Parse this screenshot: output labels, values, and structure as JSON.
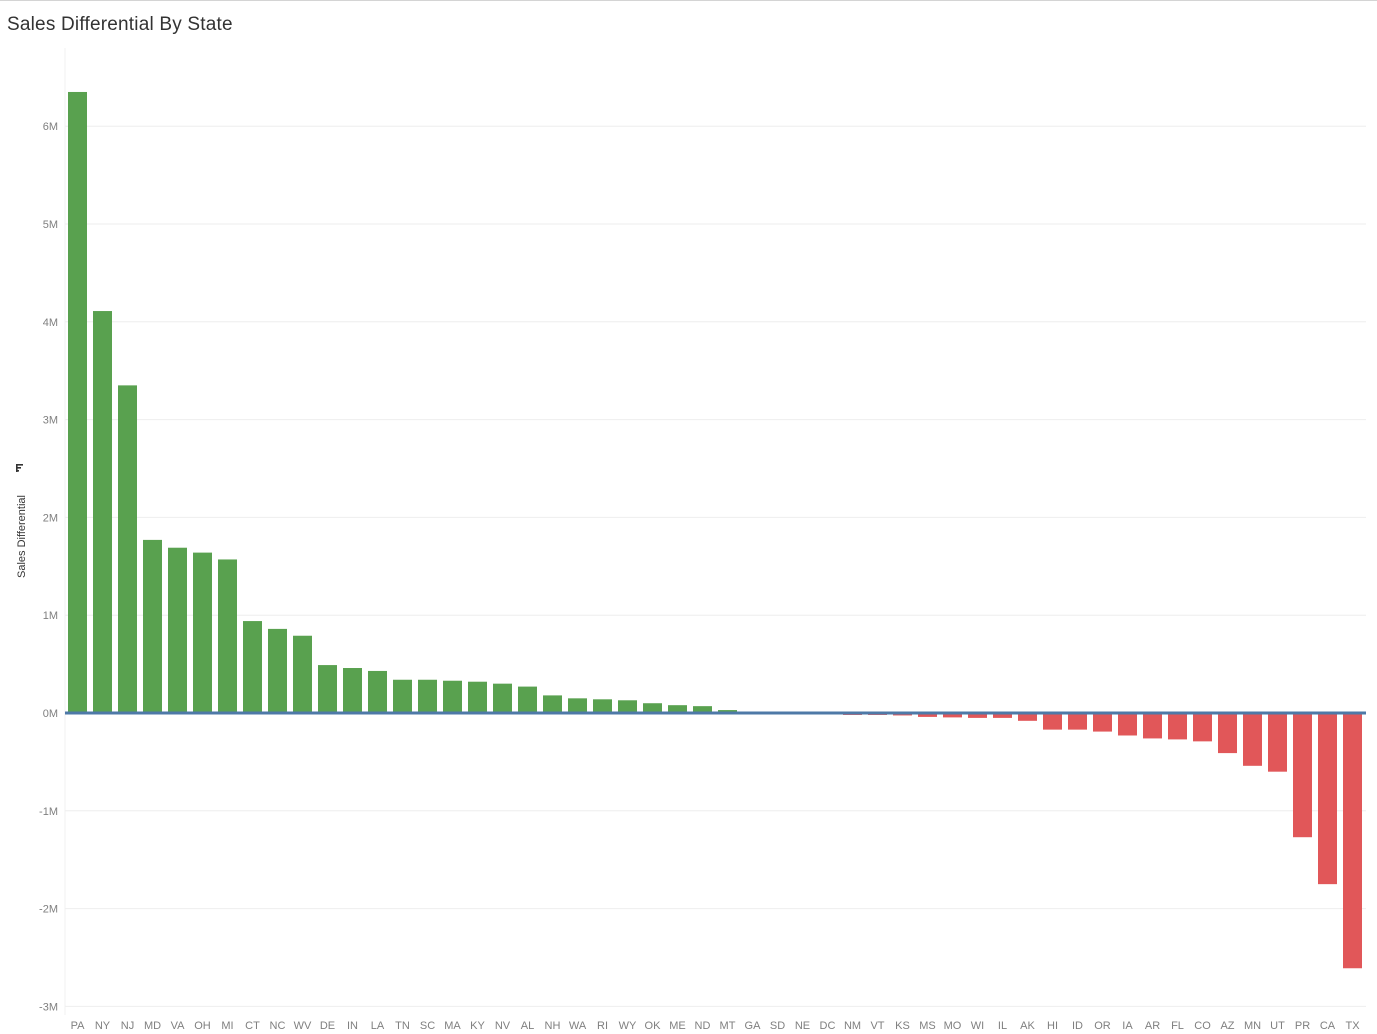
{
  "title": "Sales Differential By State",
  "chart_data": {
    "type": "bar",
    "title": "Sales Differential By State",
    "xlabel": "",
    "ylabel": "Sales Differential",
    "ylim": [
      -3000000,
      6600000
    ],
    "yticks": [
      {
        "value": 6000000,
        "label": "6M"
      },
      {
        "value": 5000000,
        "label": "5M"
      },
      {
        "value": 4000000,
        "label": "4M"
      },
      {
        "value": 3000000,
        "label": "3M"
      },
      {
        "value": 2000000,
        "label": "2M"
      },
      {
        "value": 1000000,
        "label": "1M"
      },
      {
        "value": 0,
        "label": "0M"
      },
      {
        "value": -1000000,
        "label": "-1M"
      },
      {
        "value": -2000000,
        "label": "-2M"
      },
      {
        "value": -3000000,
        "label": "-3M"
      }
    ],
    "categories": [
      "PA",
      "NY",
      "NJ",
      "MD",
      "VA",
      "OH",
      "MI",
      "CT",
      "NC",
      "WV",
      "DE",
      "IN",
      "LA",
      "TN",
      "SC",
      "MA",
      "KY",
      "NV",
      "AL",
      "NH",
      "WA",
      "RI",
      "WY",
      "OK",
      "ME",
      "ND",
      "MT",
      "GA",
      "SD",
      "NE",
      "DC",
      "NM",
      "VT",
      "KS",
      "MS",
      "MO",
      "WI",
      "IL",
      "AK",
      "HI",
      "ID",
      "OR",
      "IA",
      "AR",
      "FL",
      "CO",
      "AZ",
      "MN",
      "UT",
      "PR",
      "CA",
      "TX"
    ],
    "values": [
      6350000,
      4110000,
      3350000,
      1770000,
      1690000,
      1640000,
      1570000,
      940000,
      860000,
      790000,
      490000,
      460000,
      430000,
      340000,
      340000,
      330000,
      320000,
      300000,
      270000,
      180000,
      150000,
      140000,
      130000,
      100000,
      80000,
      70000,
      30000,
      10000,
      8000,
      5000,
      3000,
      -20000,
      -20000,
      -25000,
      -40000,
      -45000,
      -50000,
      -50000,
      -80000,
      -170000,
      -170000,
      -190000,
      -230000,
      -260000,
      -270000,
      -290000,
      -410000,
      -540000,
      -600000,
      -1270000,
      -1750000,
      -2610000
    ],
    "colors": {
      "positive": "#59a14f",
      "negative": "#e15759",
      "zero_line": "#4e79a7",
      "grid": "#eeeeee"
    },
    "grid": true,
    "sort_icon": "sort-descending-icon"
  }
}
